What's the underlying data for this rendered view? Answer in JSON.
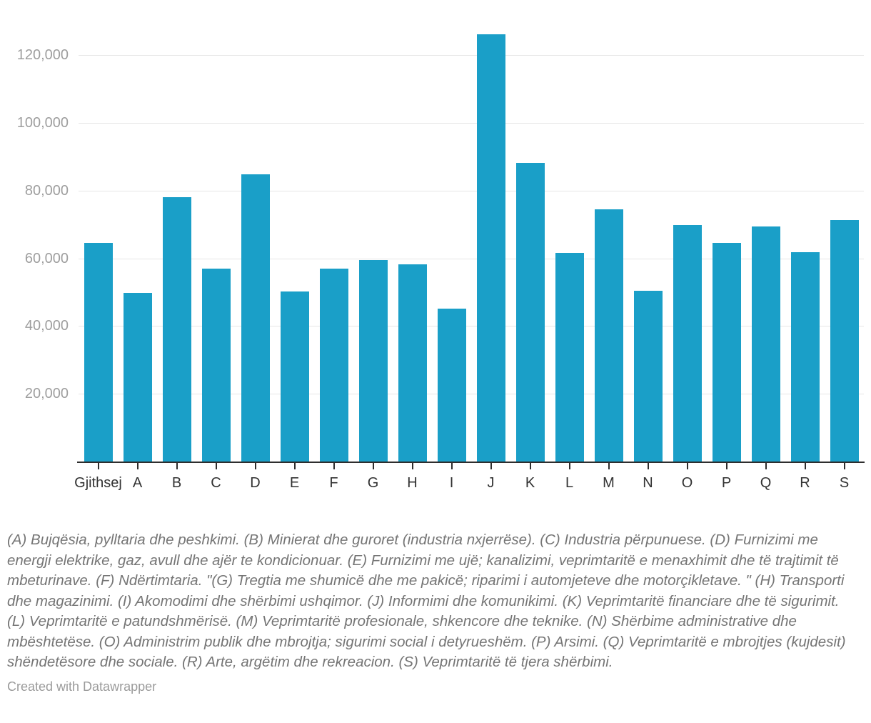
{
  "chart_data": {
    "type": "bar",
    "title": "",
    "xlabel": "",
    "ylabel": "",
    "categories": [
      "Gjithsej",
      "A",
      "B",
      "C",
      "D",
      "E",
      "F",
      "G",
      "H",
      "I",
      "J",
      "K",
      "L",
      "M",
      "N",
      "O",
      "P",
      "Q",
      "R",
      "S"
    ],
    "values": [
      64600,
      49900,
      78100,
      56900,
      84800,
      50300,
      57000,
      59500,
      58300,
      45200,
      126200,
      88200,
      61600,
      74600,
      50400,
      69900,
      64600,
      69400,
      61900,
      71400
    ],
    "ylim": [
      0,
      130000
    ],
    "yticks": [
      {
        "value": 20000,
        "label": "20,000"
      },
      {
        "value": 40000,
        "label": "40,000"
      },
      {
        "value": 60000,
        "label": "60,000"
      },
      {
        "value": 80000,
        "label": "80,000"
      },
      {
        "value": 100000,
        "label": "100,000"
      },
      {
        "value": 120000,
        "label": "120,000"
      }
    ],
    "grid": "horizontal",
    "legend": "none",
    "bar_color": "#1a9fc8",
    "gridline_color": "#e6e6e6",
    "axis_color": "#2e2e2e",
    "ytick_label_color": "#9e9e9e",
    "xtick_label_color": "#333333"
  },
  "footnote": "(A) Bujqësia, pylltaria dhe peshkimi. (B) Minierat dhe guroret (industria nxjerrëse). (C) Industria përpunuese. (D) Furnizimi me energji elektrike, gaz, avull dhe ajër te kondicionuar. (E) Furnizimi me ujë; kanalizimi, veprimtaritë e menaxhimit dhe të trajtimit të mbeturinave. (F) Ndërtimtaria. \"(G) Tregtia me shumicë dhe me pakicë; riparimi i automjeteve dhe motorçikletave. \" (H) Transporti dhe magazinimi. (I) Akomodimi dhe shërbimi ushqimor. (J) Informimi dhe komunikimi. (K) Veprimtaritë financiare dhe të sigurimit. (L) Veprimtaritë e patundshmërisë. (M) Veprimtaritë profesionale, shkencore dhe teknike. (N) Shërbime administrative dhe mbështetëse. (O) Administrim publik dhe mbrojtja; sigurimi social i detyrueshëm. (P) Arsimi. (Q) Veprimtaritë e mbrojtjes (kujdesit) shëndetësore dhe sociale. (R) Arte, argëtim dhe rekreacion. (S) Veprimtaritë të tjera shërbimi.",
  "credit": "Created with Datawrapper"
}
